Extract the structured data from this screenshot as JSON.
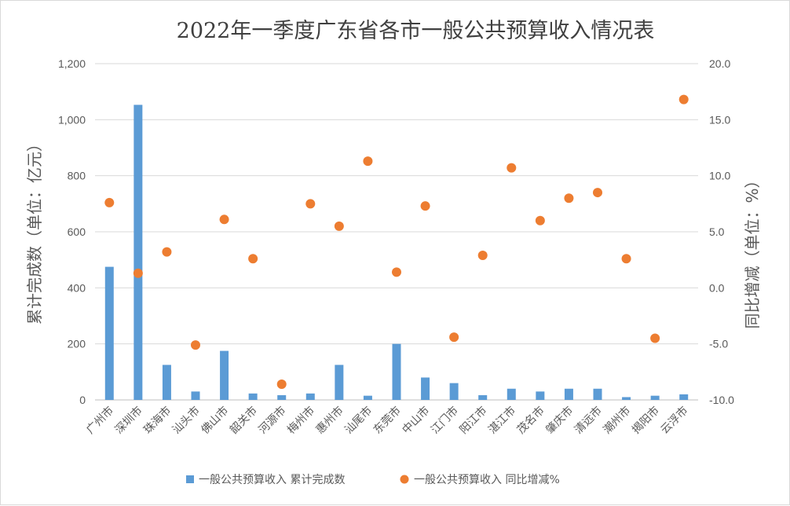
{
  "chart_data": {
    "type": "bar+scatter",
    "title": "2022年一季度广东省各市一般公共预算收入情况表",
    "ylabel_left": "累计完成数（单位：亿元）",
    "ylabel_right": "同比增减（单位：%）",
    "ylim_left": [
      0,
      1200
    ],
    "ylim_right": [
      -10,
      20
    ],
    "yticks_left": [
      "0",
      "200",
      "400",
      "600",
      "800",
      "1,000",
      "1,200"
    ],
    "yticks_right": [
      "-10.0",
      "-5.0",
      "0.0",
      "5.0",
      "10.0",
      "15.0",
      "20.0"
    ],
    "grid": "horizontal",
    "legend_position": "bottom",
    "categories": [
      "广州市",
      "深圳市",
      "珠海市",
      "汕头市",
      "佛山市",
      "韶关市",
      "河源市",
      "梅州市",
      "惠州市",
      "汕尾市",
      "东莞市",
      "中山市",
      "江门市",
      "阳江市",
      "湛江市",
      "茂名市",
      "肇庆市",
      "清远市",
      "潮州市",
      "揭阳市",
      "云浮市"
    ],
    "series": [
      {
        "name": "一般公共预算收入 累计完成数",
        "kind": "bar",
        "axis": "left",
        "color": "#5b9bd5",
        "values": [
          475,
          1053,
          125,
          30,
          175,
          23,
          17,
          23,
          125,
          15,
          200,
          80,
          60,
          17,
          40,
          30,
          40,
          40,
          10,
          15,
          20
        ]
      },
      {
        "name": "一般公共预算收入 同比增减%",
        "kind": "scatter",
        "axis": "right",
        "color": "#ed7d31",
        "values": [
          7.6,
          1.3,
          3.2,
          -5.1,
          6.1,
          2.6,
          -8.6,
          7.5,
          5.5,
          11.3,
          1.4,
          7.3,
          -4.4,
          2.9,
          10.7,
          6.0,
          8.0,
          8.5,
          2.6,
          -4.5,
          16.8
        ]
      }
    ]
  }
}
